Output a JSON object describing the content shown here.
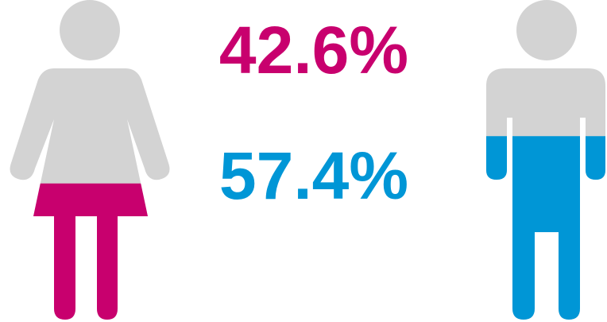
{
  "chart_data": {
    "type": "pictogram",
    "values": [
      42.6,
      57.4
    ],
    "value_labels": [
      "42.6%",
      "57.4%"
    ],
    "colors": [
      "#c8006e",
      "#0096d6"
    ],
    "base_color": "#d3d3d3"
  }
}
